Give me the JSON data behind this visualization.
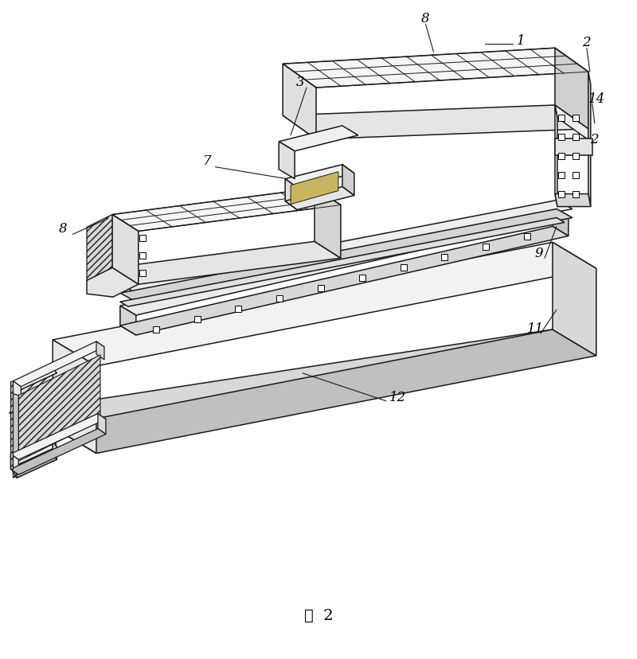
{
  "caption": "图  2",
  "caption_fontsize": 14,
  "bg_color": "#ffffff",
  "line_color": "#1a1a1a",
  "figsize": [
    8.0,
    8.29
  ],
  "dpi": 100
}
